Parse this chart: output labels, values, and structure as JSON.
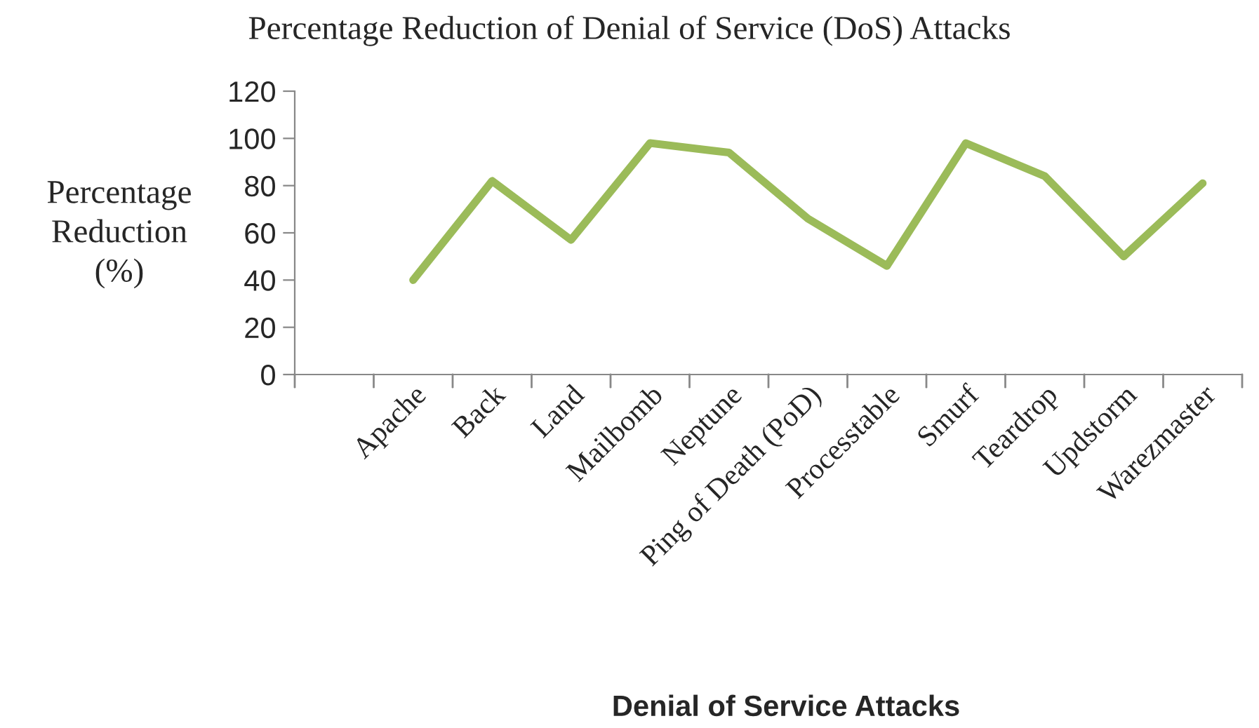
{
  "chart_data": {
    "type": "line",
    "title": "Percentage Reduction of Denial of Service (DoS) Attacks",
    "xlabel": "Denial of Service Attacks",
    "ylabel": "Percentage\nReduction\n(%)",
    "categories": [
      null,
      "Apache",
      "Back",
      "Land",
      "Mailbomb",
      "Neptune",
      "Ping of Death (PoD)",
      "Processtable",
      "Smurf",
      "Teardrop",
      "Updstorm",
      "Warezmaster"
    ],
    "series": [
      {
        "color": "#9bbb59",
        "values": [
          null,
          40,
          82,
          57,
          98,
          94,
          66,
          46,
          98,
          84,
          50,
          81
        ]
      }
    ],
    "ylim": [
      0,
      120
    ],
    "yticks": [
      0,
      20,
      40,
      60,
      80,
      100,
      120
    ],
    "grid": false,
    "legend": false,
    "marker": "none",
    "line_style": "solid"
  }
}
